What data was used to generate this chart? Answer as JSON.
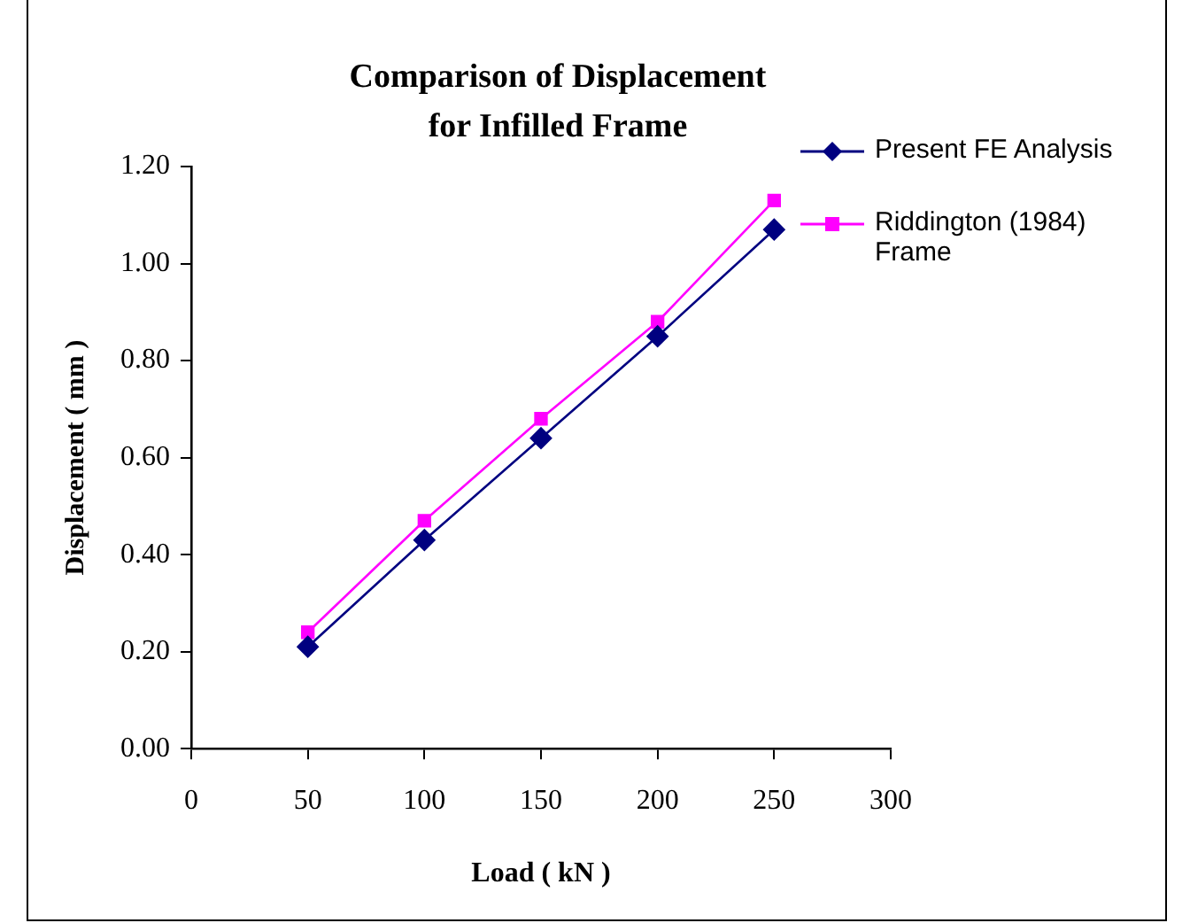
{
  "chart_data": {
    "type": "line",
    "title": "Comparison of Displacement\nfor Infilled Frame",
    "xlabel": "Load ( kN )",
    "ylabel": "Displacement ( mm )",
    "x": [
      50,
      100,
      150,
      200,
      250
    ],
    "series": [
      {
        "name": "Present FE Analysis",
        "color": "#000080",
        "marker": "diamond",
        "values": [
          0.21,
          0.43,
          0.64,
          0.85,
          1.07
        ]
      },
      {
        "name": "Riddington (1984) Frame",
        "color": "#ff00ff",
        "marker": "square",
        "values": [
          0.24,
          0.47,
          0.68,
          0.88,
          1.13
        ]
      }
    ],
    "xlim": [
      0,
      300
    ],
    "xticks": [
      0,
      50,
      100,
      150,
      200,
      250,
      300
    ],
    "ylim": [
      0,
      1.2
    ],
    "yticks": [
      {
        "value": 0,
        "label": "0.00"
      },
      {
        "value": 0.2,
        "label": "0.20"
      },
      {
        "value": 0.4,
        "label": "0.40"
      },
      {
        "value": 0.6,
        "label": "0.60"
      },
      {
        "value": 0.8,
        "label": "0.80"
      },
      {
        "value": 1,
        "label": "1.00"
      },
      {
        "value": 1.2,
        "label": "1.20"
      }
    ],
    "grid": false,
    "legend": "top right",
    "line_style": "solid"
  }
}
